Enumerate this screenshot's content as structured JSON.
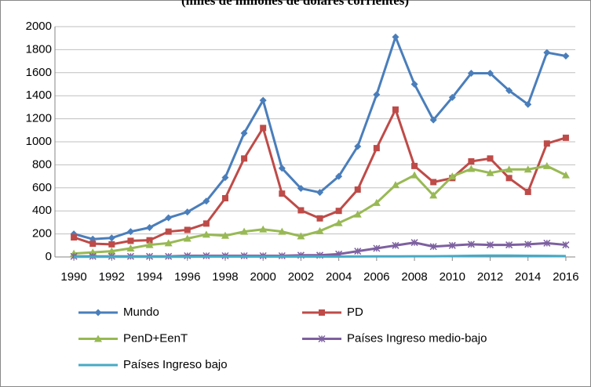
{
  "chart_data": {
    "type": "line",
    "subtitle": "(miles de millones de dólares corrientes)",
    "x": [
      1990,
      1991,
      1992,
      1993,
      1994,
      1995,
      1996,
      1997,
      1998,
      1999,
      2000,
      2001,
      2002,
      2003,
      2004,
      2005,
      2006,
      2007,
      2008,
      2009,
      2010,
      2011,
      2012,
      2013,
      2014,
      2015,
      2016
    ],
    "xlim": [
      1989,
      2016.5
    ],
    "xticks": [
      1990,
      1992,
      1994,
      1996,
      1998,
      2000,
      2002,
      2004,
      2006,
      2008,
      2010,
      2012,
      2014,
      2016
    ],
    "ylim": [
      0,
      2000
    ],
    "yticks": [
      0,
      200,
      400,
      600,
      800,
      1000,
      1200,
      1400,
      1600,
      1800,
      2000
    ],
    "grid": true,
    "legend": "bottom",
    "series": [
      {
        "name": "Mundo",
        "color": "#4a7ebb",
        "marker": "diamond",
        "values": [
          200,
          155,
          165,
          220,
          255,
          340,
          390,
          485,
          690,
          1075,
          1360,
          770,
          595,
          560,
          700,
          960,
          1410,
          1910,
          1500,
          1190,
          1385,
          1595,
          1595,
          1445,
          1325,
          1775,
          1745
        ]
      },
      {
        "name": "PD",
        "color": "#be4b48",
        "marker": "square",
        "values": [
          170,
          115,
          110,
          140,
          145,
          220,
          235,
          290,
          510,
          855,
          1120,
          550,
          405,
          335,
          400,
          585,
          945,
          1280,
          790,
          650,
          685,
          830,
          855,
          685,
          565,
          985,
          1035
        ]
      },
      {
        "name": "PenD+EenT",
        "color": "#98b954",
        "marker": "triangle",
        "values": [
          30,
          40,
          50,
          75,
          105,
          120,
          160,
          195,
          185,
          220,
          240,
          220,
          180,
          225,
          295,
          370,
          470,
          625,
          710,
          535,
          700,
          765,
          730,
          760,
          760,
          790,
          710
        ]
      },
      {
        "name": "Países Ingreso medio-bajo",
        "color": "#7d60a0",
        "marker": "x",
        "values": [
          5,
          5,
          5,
          5,
          5,
          5,
          10,
          10,
          10,
          10,
          10,
          10,
          15,
          15,
          25,
          50,
          75,
          100,
          125,
          90,
          100,
          110,
          105,
          105,
          110,
          120,
          105
        ]
      },
      {
        "name": "Países Ingreso bajo",
        "color": "#46aac5",
        "marker": "none",
        "values": [
          2,
          2,
          2,
          2,
          2,
          2,
          2,
          3,
          3,
          3,
          3,
          3,
          3,
          3,
          3,
          4,
          5,
          5,
          6,
          6,
          8,
          10,
          12,
          12,
          10,
          9,
          8
        ]
      }
    ]
  }
}
